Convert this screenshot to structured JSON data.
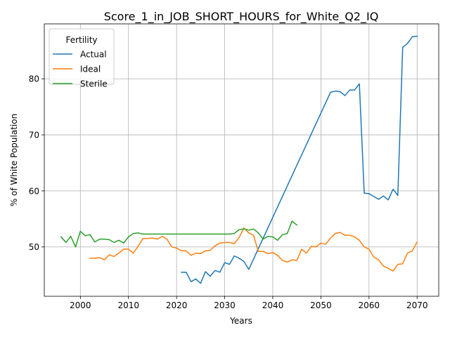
{
  "chart_data": {
    "type": "line",
    "title": "Score_1_in_JOB_SHORT_HOURS_for_White_Q2_IQ",
    "xlabel": "Years",
    "ylabel": "% of White Population",
    "xlim": [
      1992.5,
      2074.5
    ],
    "ylim": [
      41.2,
      89.8
    ],
    "xticks": [
      2000,
      2010,
      2020,
      2030,
      2040,
      2050,
      2060,
      2070
    ],
    "yticks": [
      50,
      60,
      70,
      80
    ],
    "grid": true,
    "legend": {
      "title": "Fertility",
      "placement": "top-left"
    },
    "series": [
      {
        "name": "Actual",
        "color": "#1f77b4",
        "x": [
          2021,
          2022,
          2023,
          2024,
          2025,
          2026,
          2027,
          2028,
          2029,
          2030,
          2031,
          2032,
          2033,
          2034,
          2035,
          2052,
          2053,
          2054,
          2055,
          2056,
          2057,
          2058,
          2059,
          2060,
          2061,
          2062,
          2063,
          2064,
          2065,
          2066,
          2067,
          2068,
          2069,
          2070
        ],
        "y": [
          45.5,
          45.5,
          43.8,
          44.3,
          43.5,
          45.6,
          44.8,
          45.8,
          45.5,
          47.2,
          46.9,
          48.4,
          48.0,
          47.4,
          46.0,
          77.6,
          77.8,
          77.7,
          77.0,
          78.0,
          78.0,
          79.1,
          59.6,
          59.5,
          59.0,
          58.5,
          59.1,
          58.4,
          60.3,
          59.2,
          85.6,
          86.3,
          87.5,
          87.6
        ]
      },
      {
        "name": "Ideal",
        "color": "#ff7f0e",
        "x": [
          2002,
          2003,
          2004,
          2005,
          2006,
          2007,
          2008,
          2009,
          2010,
          2011,
          2012,
          2013,
          2014,
          2015,
          2016,
          2017,
          2018,
          2019,
          2020,
          2021,
          2022,
          2023,
          2024,
          2025,
          2026,
          2027,
          2028,
          2029,
          2030,
          2031,
          2032,
          2033,
          2034,
          2035,
          2036,
          2037,
          2038,
          2039,
          2040,
          2041,
          2042,
          2043,
          2044,
          2045,
          2046,
          2047,
          2048,
          2049,
          2050,
          2051,
          2052,
          2053,
          2054,
          2055,
          2056,
          2057,
          2058,
          2059,
          2060,
          2061,
          2062,
          2063,
          2064,
          2065,
          2066,
          2067,
          2068,
          2069,
          2070
        ],
        "y": [
          48.0,
          48.0,
          48.1,
          47.7,
          48.6,
          48.3,
          48.9,
          49.6,
          49.6,
          48.9,
          50.1,
          51.5,
          51.5,
          51.6,
          51.4,
          51.9,
          51.4,
          50.0,
          49.8,
          49.3,
          49.3,
          48.5,
          48.9,
          48.8,
          49.3,
          49.4,
          50.2,
          50.7,
          50.8,
          50.8,
          50.6,
          51.7,
          53.4,
          52.5,
          52.1,
          49.2,
          49.2,
          48.8,
          49.0,
          48.5,
          47.6,
          47.3,
          47.7,
          47.6,
          49.6,
          48.9,
          50.1,
          50.0,
          50.7,
          50.5,
          51.6,
          52.4,
          52.6,
          52.1,
          52.1,
          51.8,
          51.2,
          50.0,
          49.6,
          48.2,
          47.7,
          46.6,
          46.2,
          45.7,
          46.9,
          47.0,
          48.9,
          49.3,
          50.9
        ]
      },
      {
        "name": "Sterile",
        "color": "#2ca02c",
        "x": [
          1996,
          1997,
          1998,
          1999,
          2000,
          2001,
          2002,
          2003,
          2004,
          2005,
          2006,
          2007,
          2008,
          2009,
          2010,
          2011,
          2012,
          2013,
          2014,
          2015,
          2016,
          2017,
          2018,
          2019,
          2020,
          2021,
          2022,
          2023,
          2024,
          2025,
          2026,
          2027,
          2028,
          2029,
          2030,
          2031,
          2032,
          2033,
          2034,
          2035,
          2036,
          2037,
          2038,
          2039,
          2040,
          2041,
          2042,
          2043,
          2044,
          2045
        ],
        "y": [
          51.8,
          50.8,
          51.9,
          50.0,
          52.8,
          52.0,
          52.2,
          50.9,
          51.4,
          51.4,
          51.3,
          50.8,
          51.2,
          50.7,
          51.8,
          52.4,
          52.5,
          52.3,
          52.3,
          52.3,
          52.3,
          52.3,
          52.3,
          52.3,
          52.3,
          52.3,
          52.3,
          52.3,
          52.3,
          52.3,
          52.3,
          52.3,
          52.3,
          52.3,
          52.3,
          52.3,
          52.4,
          53.1,
          53.2,
          53.0,
          53.2,
          52.5,
          51.4,
          51.9,
          51.8,
          51.2,
          52.2,
          52.4,
          54.6,
          53.9
        ]
      }
    ]
  }
}
